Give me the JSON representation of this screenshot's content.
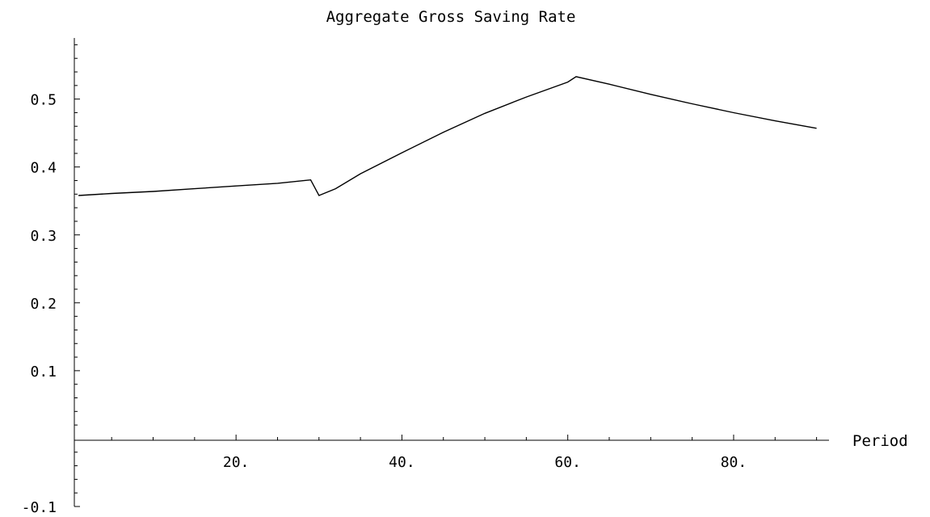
{
  "chart_data": {
    "type": "line",
    "title": "Aggregate Gross Saving Rate",
    "xlabel": "Period",
    "ylabel": "",
    "xlim": [
      0.5,
      91.5
    ],
    "ylim": [
      -0.1,
      0.59
    ],
    "grid": false,
    "x_ticks": [
      20,
      40,
      60,
      80
    ],
    "x_tick_labels": [
      "20.",
      "40.",
      "60.",
      "80."
    ],
    "y_ticks": [
      -0.1,
      0.1,
      0.2,
      0.3,
      0.4,
      0.5
    ],
    "y_tick_labels": [
      "-0.1",
      "0.1",
      "0.2",
      "0.3",
      "0.4",
      "0.5"
    ],
    "series": [
      {
        "x": [
          1,
          5,
          10,
          15,
          20,
          25,
          29,
          30,
          32,
          35,
          40,
          45,
          50,
          55,
          60,
          61,
          65,
          70,
          75,
          80,
          85,
          90
        ],
        "values": [
          0.358,
          0.361,
          0.364,
          0.368,
          0.372,
          0.376,
          0.381,
          0.358,
          0.368,
          0.39,
          0.421,
          0.451,
          0.479,
          0.503,
          0.525,
          0.533,
          0.522,
          0.507,
          0.493,
          0.48,
          0.468,
          0.457
        ]
      }
    ]
  }
}
